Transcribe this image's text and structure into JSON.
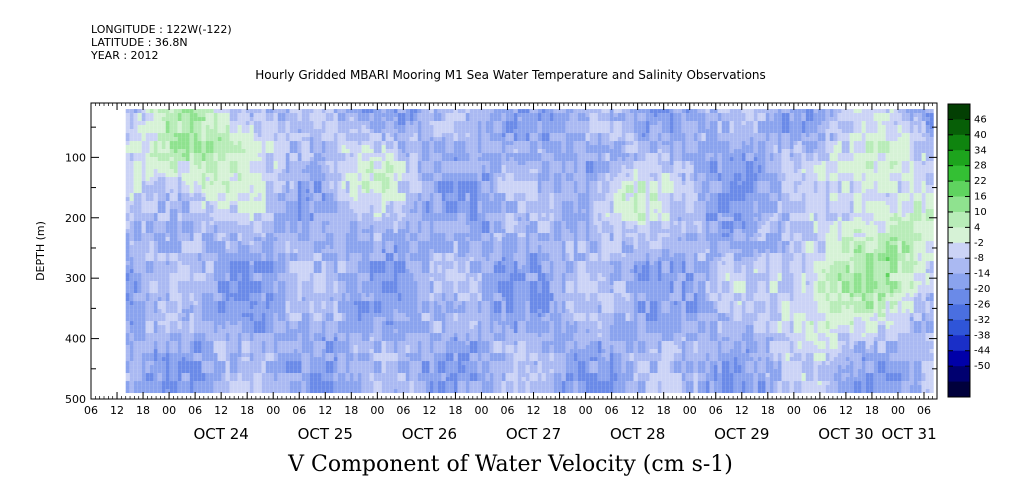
{
  "header": {
    "longitude": "LONGITUDE : 122W(-122)",
    "latitude": "LATITUDE : 36.8N",
    "year": "YEAR : 2012"
  },
  "title": "Hourly Gridded MBARI Mooring M1 Sea Water Temperature and Salinity Observations",
  "x_axis_title": "V Component of Water Velocity (cm s-1)",
  "chart_data": {
    "type": "heatmap",
    "variable": "V Component of Water Velocity",
    "units": "cm s-1",
    "ylabel": "DEPTH (m)",
    "y_reversed": true,
    "ylim": [
      500,
      10
    ],
    "y_major_ticks": [
      100,
      200,
      300,
      400,
      500
    ],
    "y_minor_ticks": [
      50,
      150,
      250,
      350,
      450
    ],
    "xlim": [
      "2012-10-23T06:00",
      "2012-10-31T09:00"
    ],
    "x_hour_ticks": [
      "06",
      "12",
      "18",
      "00",
      "06",
      "12",
      "18",
      "00",
      "06",
      "12",
      "18",
      "00",
      "06",
      "12",
      "18",
      "00",
      "06",
      "12",
      "18",
      "00",
      "06",
      "12",
      "18",
      "00",
      "06",
      "12",
      "18",
      "00",
      "06",
      "12",
      "18",
      "00",
      "06"
    ],
    "x_day_labels": [
      "OCT 24",
      "OCT 25",
      "OCT 26",
      "OCT 27",
      "OCT 28",
      "OCT 29",
      "OCT 30",
      "OCT 31"
    ],
    "data_time_range": [
      "2012-10-23T14:00",
      "2012-10-31T08:00"
    ],
    "data_depth_range": [
      20,
      485
    ],
    "colorbar": {
      "levels": [
        -50,
        -44,
        -38,
        -32,
        -26,
        -20,
        -14,
        -8,
        -2,
        4,
        10,
        16,
        22,
        28,
        34,
        40,
        46
      ],
      "tick_labels": [
        "46",
        "40",
        "34",
        "28",
        "22",
        "16",
        "10",
        "4",
        "-2",
        "-8",
        "-14",
        "-20",
        "-26",
        "-32",
        "-38",
        "-44",
        "-50"
      ],
      "colors_low_to_high": [
        "#00003c",
        "#000070",
        "#0000a8",
        "#1a2fc8",
        "#2f55d8",
        "#4a6fe0",
        "#6a8ae8",
        "#8aa3ee",
        "#aab9f2",
        "#cbd3f6",
        "#d6f2d6",
        "#b8ecb8",
        "#8fe28f",
        "#5fd35f",
        "#34c034",
        "#1da41d",
        "#0f840f",
        "#075f07",
        "#033f03"
      ]
    },
    "dominant_range": [
      -20,
      16
    ],
    "green_patches_note_times": [
      "OCT 24 00-12",
      "OCT 25 18 - OCT 26 00",
      "OCT 28 06-12",
      "OCT 30 00-12",
      "OCT 30 18 - OCT 31 06"
    ]
  }
}
